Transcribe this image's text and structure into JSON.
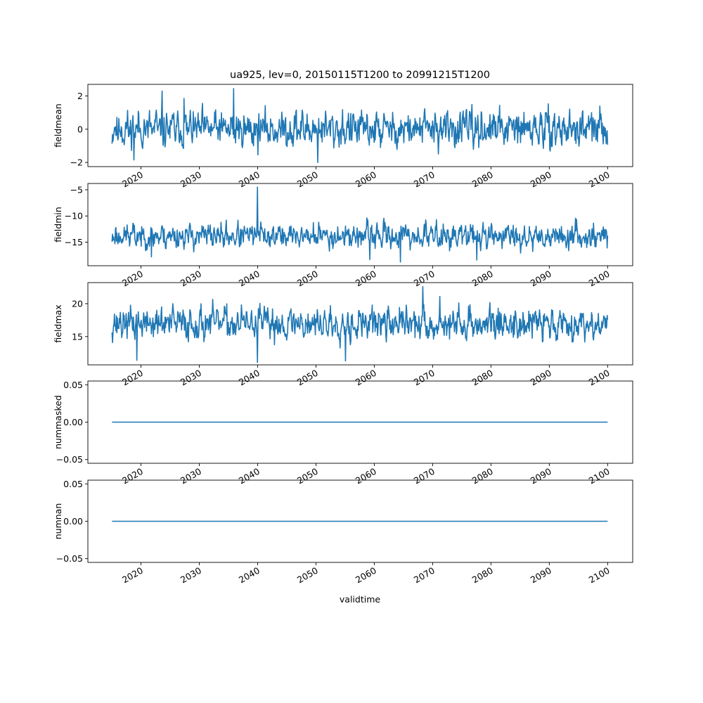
{
  "figure": {
    "title": "ua925, lev=0, 20150115T1200 to 20991215T1200",
    "xlabel": "validtime",
    "line_color": "#1f77b4"
  },
  "chart_data": [
    {
      "type": "line",
      "ylabel": "fieldmean",
      "xlim": [
        2010.9,
        2104.3
      ],
      "ylim": [
        -2.25,
        2.7
      ],
      "yticks": [
        -2,
        0,
        2
      ],
      "yticklabels": [
        "−2",
        "0",
        "2"
      ],
      "xticks": [
        2020,
        2030,
        2040,
        2050,
        2060,
        2070,
        2080,
        2090,
        2100
      ],
      "xticklabels": [
        "2020",
        "2030",
        "2040",
        "2050",
        "2060",
        "2070",
        "2080",
        "2090",
        "2100"
      ],
      "x_start": 2015.04,
      "x_end": 2100.0,
      "base": 0.0,
      "amplitude": 0.75,
      "seed": 11,
      "spikes": [
        [
          2023.6,
          2.3
        ],
        [
          2035.9,
          2.45
        ],
        [
          2018.8,
          -1.85
        ],
        [
          2050.3,
          -2.0
        ],
        [
          2027.4,
          1.85
        ]
      ]
    },
    {
      "type": "line",
      "ylabel": "fieldmin",
      "xlim": [
        2010.9,
        2104.3
      ],
      "ylim": [
        -19.5,
        -3.8
      ],
      "yticks": [
        -15,
        -10,
        -5
      ],
      "yticklabels": [
        "−15",
        "−10",
        "−5"
      ],
      "xticks": [
        2020,
        2030,
        2040,
        2050,
        2060,
        2070,
        2080,
        2090,
        2100
      ],
      "xticklabels": [
        "2020",
        "2030",
        "2040",
        "2050",
        "2060",
        "2070",
        "2080",
        "2090",
        "2100"
      ],
      "x_start": 2015.04,
      "x_end": 2100.0,
      "base": -13.8,
      "amplitude": 1.6,
      "seed": 23,
      "spikes": [
        [
          2040.0,
          -4.5
        ],
        [
          2064.5,
          -18.8
        ],
        [
          2059.2,
          -18.3
        ],
        [
          2077.6,
          -18.4
        ],
        [
          2021.8,
          -17.8
        ]
      ]
    },
    {
      "type": "line",
      "ylabel": "fieldmax",
      "xlim": [
        2010.9,
        2104.3
      ],
      "ylim": [
        10.7,
        23.2
      ],
      "yticks": [
        15,
        20
      ],
      "yticklabels": [
        "15",
        "20"
      ],
      "xticks": [
        2020,
        2030,
        2040,
        2050,
        2060,
        2070,
        2080,
        2090,
        2100
      ],
      "xticklabels": [
        "2020",
        "2030",
        "2040",
        "2050",
        "2060",
        "2070",
        "2080",
        "2090",
        "2100"
      ],
      "x_start": 2015.04,
      "x_end": 2100.0,
      "base": 17.0,
      "amplitude": 1.7,
      "seed": 37,
      "spikes": [
        [
          2068.3,
          22.6
        ],
        [
          2071.2,
          21.1
        ],
        [
          2040.0,
          11.0
        ],
        [
          2055.1,
          11.3
        ],
        [
          2019.3,
          11.4
        ]
      ]
    },
    {
      "type": "line",
      "ylabel": "nummasked",
      "xlim": [
        2010.9,
        2104.3
      ],
      "ylim": [
        -0.055,
        0.055
      ],
      "yticks": [
        -0.05,
        0.0,
        0.05
      ],
      "yticklabels": [
        "−0.05",
        "0.00",
        "0.05"
      ],
      "xticks": [
        2020,
        2030,
        2040,
        2050,
        2060,
        2070,
        2080,
        2090,
        2100
      ],
      "xticklabels": [
        "2020",
        "2030",
        "2040",
        "2050",
        "2060",
        "2070",
        "2080",
        "2090",
        "2100"
      ],
      "x_start": 2015.04,
      "x_end": 2100.0,
      "base": 0.0,
      "amplitude": 0.0,
      "seed": 1,
      "spikes": []
    },
    {
      "type": "line",
      "ylabel": "numnan",
      "xlim": [
        2010.9,
        2104.3
      ],
      "ylim": [
        -0.055,
        0.055
      ],
      "yticks": [
        -0.05,
        0.0,
        0.05
      ],
      "yticklabels": [
        "−0.05",
        "0.00",
        "0.05"
      ],
      "xticks": [
        2020,
        2030,
        2040,
        2050,
        2060,
        2070,
        2080,
        2090,
        2100
      ],
      "xticklabels": [
        "2020",
        "2030",
        "2040",
        "2050",
        "2060",
        "2070",
        "2080",
        "2090",
        "2100"
      ],
      "x_start": 2015.04,
      "x_end": 2100.0,
      "base": 0.0,
      "amplitude": 0.0,
      "seed": 2,
      "spikes": []
    }
  ]
}
